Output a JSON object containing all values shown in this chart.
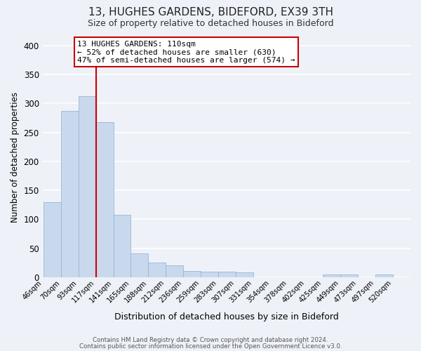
{
  "title": "13, HUGHES GARDENS, BIDEFORD, EX39 3TH",
  "subtitle": "Size of property relative to detached houses in Bideford",
  "xlabel": "Distribution of detached houses by size in Bideford",
  "ylabel": "Number of detached properties",
  "bar_labels": [
    "46sqm",
    "70sqm",
    "93sqm",
    "117sqm",
    "141sqm",
    "165sqm",
    "188sqm",
    "212sqm",
    "236sqm",
    "259sqm",
    "283sqm",
    "307sqm",
    "331sqm",
    "354sqm",
    "378sqm",
    "402sqm",
    "425sqm",
    "449sqm",
    "473sqm",
    "497sqm",
    "520sqm"
  ],
  "bar_values": [
    130,
    287,
    313,
    268,
    108,
    41,
    25,
    21,
    11,
    10,
    10,
    8,
    0,
    0,
    0,
    0,
    5,
    5,
    0,
    5,
    0
  ],
  "bar_color": "#c8d9ee",
  "bar_edgecolor": "#9ab4d4",
  "property_line_index": 3,
  "property_line_color": "#cc0000",
  "ylim": [
    0,
    415
  ],
  "yticks": [
    0,
    50,
    100,
    150,
    200,
    250,
    300,
    350,
    400
  ],
  "annotation_title": "13 HUGHES GARDENS: 110sqm",
  "annotation_line1": "← 52% of detached houses are smaller (630)",
  "annotation_line2": "47% of semi-detached houses are larger (574) →",
  "annotation_box_edgecolor": "#cc0000",
  "footer_line1": "Contains HM Land Registry data © Crown copyright and database right 2024.",
  "footer_line2": "Contains public sector information licensed under the Open Government Licence v3.0.",
  "bg_color": "#eef2f8",
  "grid_color": "#ffffff"
}
